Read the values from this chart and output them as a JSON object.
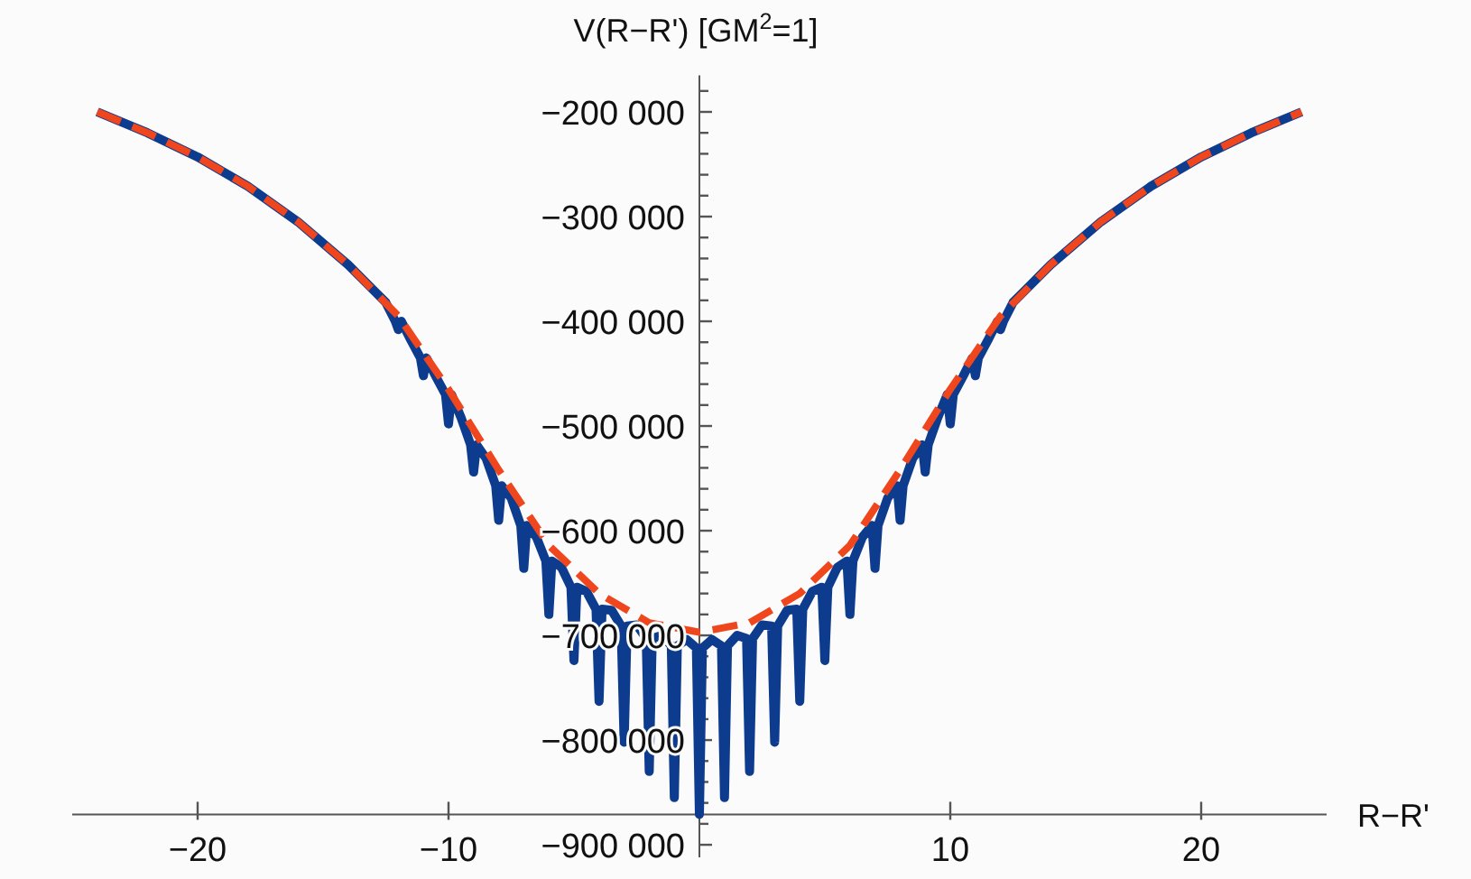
{
  "chart_data": {
    "type": "line",
    "xlabel": "R−R'",
    "ylabel": "V(R−R') [GM$^{2}$=1]",
    "xlim": [
      -25,
      25
    ],
    "ylim": [
      -912000,
      -165000
    ],
    "xticks": [
      {
        "value": -20,
        "label": "−20"
      },
      {
        "value": -10,
        "label": "−10"
      },
      10,
      20
    ],
    "yticks": [
      {
        "value": -180000,
        "label": null
      },
      {
        "value": -200000,
        "label": "−200 000"
      },
      {
        "value": -220000,
        "label": null
      },
      {
        "value": -240000,
        "label": null
      },
      {
        "value": -260000,
        "label": null
      },
      {
        "value": -280000,
        "label": null
      },
      {
        "value": -300000,
        "label": "−300 000"
      },
      {
        "value": -320000,
        "label": null
      },
      {
        "value": -340000,
        "label": null
      },
      {
        "value": -360000,
        "label": null
      },
      {
        "value": -380000,
        "label": null
      },
      {
        "value": -400000,
        "label": "−400 000"
      },
      {
        "value": -420000,
        "label": null
      },
      {
        "value": -440000,
        "label": null
      },
      {
        "value": -460000,
        "label": null
      },
      {
        "value": -480000,
        "label": null
      },
      {
        "value": -500000,
        "label": "−500 000"
      },
      {
        "value": -520000,
        "label": null
      },
      {
        "value": -540000,
        "label": null
      },
      {
        "value": -560000,
        "label": null
      },
      {
        "value": -580000,
        "label": null
      },
      {
        "value": -600000,
        "label": "−600 000"
      },
      {
        "value": -620000,
        "label": null
      },
      {
        "value": -640000,
        "label": null
      },
      {
        "value": -660000,
        "label": null
      },
      {
        "value": -680000,
        "label": null
      },
      {
        "value": -700000,
        "label": "−700 000"
      },
      {
        "value": -720000,
        "label": null
      },
      {
        "value": -740000,
        "label": null
      },
      {
        "value": -760000,
        "label": null
      },
      {
        "value": -780000,
        "label": null
      },
      {
        "value": -800000,
        "label": "−800 000"
      },
      {
        "value": -820000,
        "label": null
      },
      {
        "value": -840000,
        "label": null
      },
      {
        "value": -860000,
        "label": null
      },
      {
        "value": -880000,
        "label": null
      },
      {
        "value": -900000,
        "label": "−900 000"
      }
    ],
    "grid": false,
    "marker": "none",
    "series": [
      {
        "color": "#0d3b8e",
        "line_style": "solid",
        "x": [
          -24,
          -22,
          -20,
          -18,
          -16,
          -14,
          -13,
          -12.5,
          -12.12,
          -12,
          -11.88,
          -11.5,
          -11.12,
          -11,
          -10.88,
          -10.5,
          -10.12,
          -10,
          -9.88,
          -9.5,
          -9.12,
          -9,
          -8.88,
          -8.5,
          -8.12,
          -8,
          -7.88,
          -7.5,
          -7.12,
          -7,
          -6.88,
          -6.5,
          -6.12,
          -6,
          -5.88,
          -5.5,
          -5.12,
          -5,
          -4.88,
          -4.5,
          -4.12,
          -4,
          -3.88,
          -3.5,
          -3.12,
          -3,
          -2.88,
          -2.5,
          -2.12,
          -2,
          -1.88,
          -1.5,
          -1.12,
          -1,
          -0.88,
          -0.5,
          -0.12,
          0,
          0.12,
          0.5,
          0.88,
          1,
          1.12,
          1.5,
          1.88,
          2,
          2.12,
          2.5,
          2.88,
          3,
          3.12,
          3.5,
          3.88,
          4,
          4.12,
          4.5,
          4.88,
          5,
          5.12,
          5.5,
          5.88,
          6,
          6.12,
          6.5,
          6.88,
          7,
          7.12,
          7.5,
          7.88,
          8,
          8.12,
          8.5,
          8.88,
          9,
          9.12,
          9.5,
          9.88,
          10,
          10.12,
          10.5,
          10.88,
          11,
          11.12,
          11.5,
          11.88,
          12,
          12.12,
          12.5,
          13,
          14,
          16,
          18,
          20,
          22,
          24
        ],
        "values": [
          -200000,
          -220000,
          -243000,
          -271000,
          -305000,
          -346000,
          -370000,
          -382000,
          -400000,
          -408000,
          -400000,
          -418000,
          -435000,
          -452000,
          -435000,
          -453000,
          -470000,
          -498000,
          -470000,
          -492000,
          -518000,
          -544000,
          -518000,
          -531000,
          -557000,
          -590000,
          -557000,
          -569000,
          -595000,
          -636000,
          -595000,
          -606000,
          -629000,
          -680000,
          -629000,
          -635000,
          -654000,
          -724000,
          -654000,
          -658000,
          -675000,
          -763000,
          -675000,
          -676000,
          -691000,
          -802000,
          -691000,
          -690000,
          -703000,
          -830000,
          -703000,
          -700000,
          -710000,
          -855000,
          -710000,
          -704000,
          -712000,
          -871000,
          -712000,
          -704000,
          -710000,
          -855000,
          -710000,
          -700000,
          -703000,
          -830000,
          -703000,
          -690000,
          -691000,
          -802000,
          -691000,
          -676000,
          -675000,
          -763000,
          -675000,
          -658000,
          -654000,
          -724000,
          -654000,
          -635000,
          -629000,
          -680000,
          -629000,
          -606000,
          -595000,
          -636000,
          -595000,
          -569000,
          -557000,
          -590000,
          -557000,
          -531000,
          -518000,
          -544000,
          -518000,
          -492000,
          -470000,
          -498000,
          -470000,
          -453000,
          -435000,
          -452000,
          -435000,
          -418000,
          -400000,
          -408000,
          -400000,
          -382000,
          -370000,
          -346000,
          -305000,
          -271000,
          -243000,
          -220000,
          -200000
        ]
      },
      {
        "color": "#f0461e",
        "line_style": "dashed",
        "x": [
          -24,
          -22,
          -20,
          -18,
          -16,
          -14,
          -12,
          -10,
          -8,
          -6,
          -4,
          -2,
          0,
          2,
          4,
          6,
          8,
          10,
          12,
          14,
          16,
          18,
          20,
          22,
          24
        ],
        "values": [
          -200000,
          -220000,
          -243000,
          -271000,
          -305000,
          -346000,
          -395000,
          -465000,
          -542000,
          -614000,
          -660000,
          -688000,
          -697000,
          -688000,
          -660000,
          -614000,
          -542000,
          -465000,
          -395000,
          -346000,
          -305000,
          -271000,
          -243000,
          -220000,
          -200000
        ]
      }
    ]
  }
}
